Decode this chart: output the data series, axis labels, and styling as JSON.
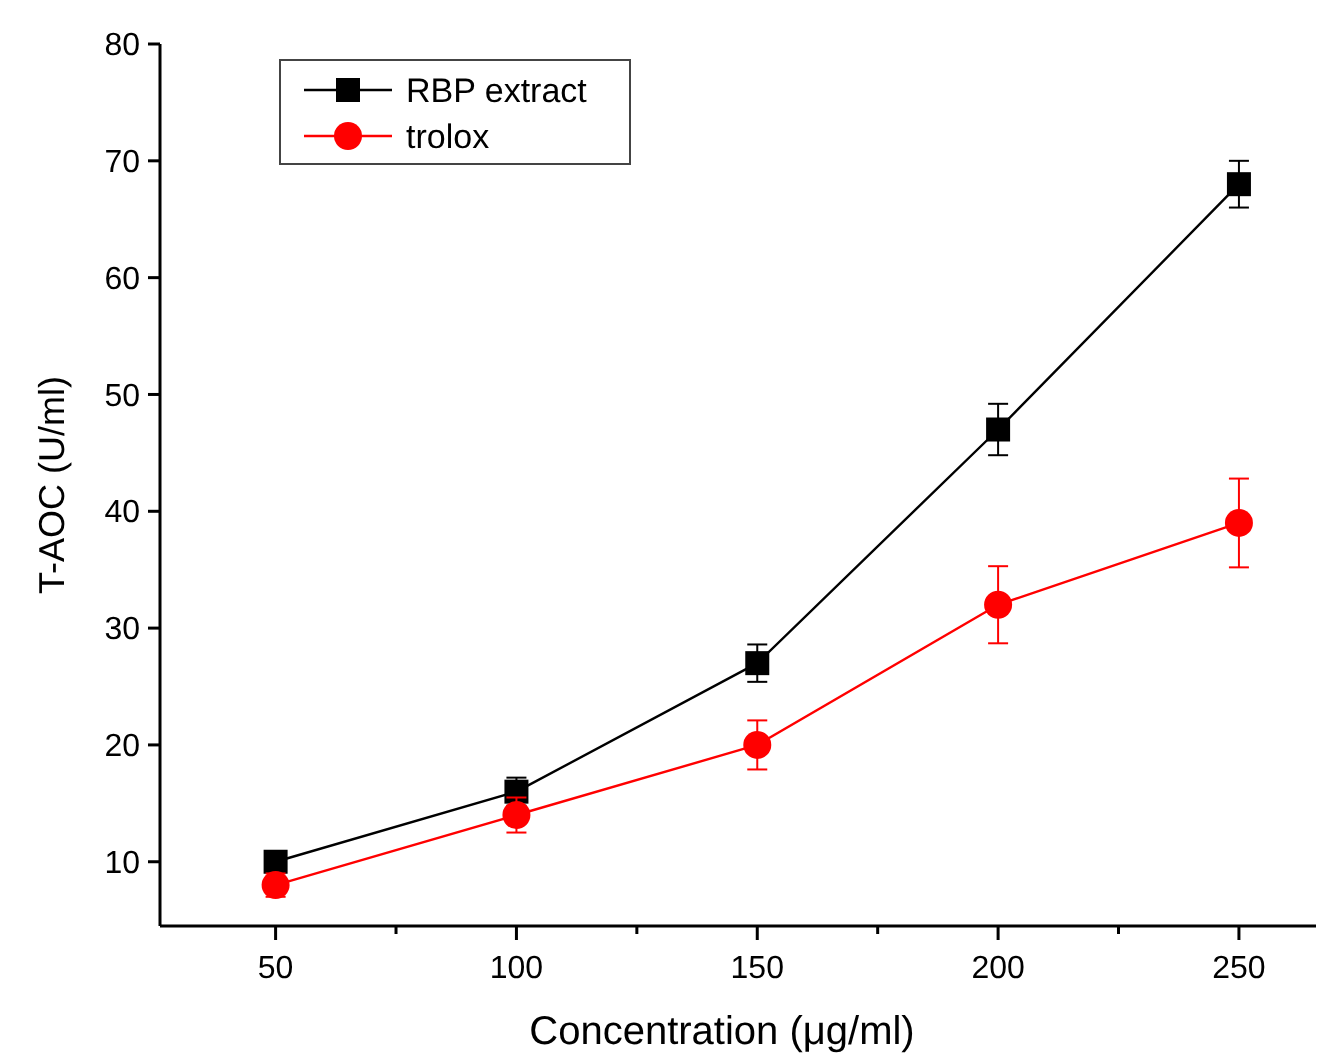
{
  "chart_data": {
    "type": "line",
    "xlabel": "Concentration  (μg/ml)",
    "ylabel": "T-AOC (U/ml)",
    "x": [
      50,
      100,
      150,
      200,
      250
    ],
    "series": [
      {
        "name": "RBP extract",
        "color": "#000000",
        "marker": "square",
        "values": [
          10,
          16,
          27,
          47,
          68
        ],
        "errors": [
          0.6,
          1.2,
          1.6,
          2.2,
          2
        ]
      },
      {
        "name": "trolox",
        "color": "#ff0000",
        "marker": "circle",
        "values": [
          8,
          14,
          20,
          32,
          39
        ],
        "errors": [
          1,
          1.5,
          2.1,
          3.3,
          3.8
        ]
      }
    ],
    "xlim": [
      26,
      266
    ],
    "xticks": [
      50,
      {
        "value": 75,
        "label": null
      },
      100,
      {
        "value": 125,
        "label": null
      },
      150,
      {
        "value": 175,
        "label": null
      },
      200,
      {
        "value": 225,
        "label": null
      },
      250
    ],
    "ylim": [
      4.5,
      80
    ],
    "yticks": [
      10,
      20,
      30,
      40,
      50,
      60,
      70,
      80
    ],
    "legend": "top left",
    "grid": false,
    "line_style": "solid"
  }
}
